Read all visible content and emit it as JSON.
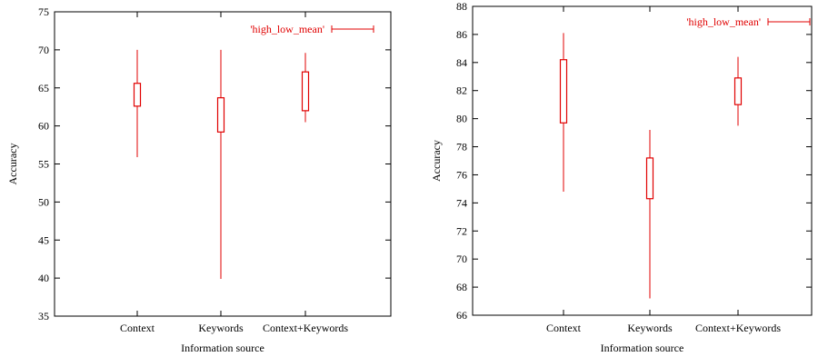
{
  "chart_data": [
    {
      "type": "candlestick",
      "xlabel": "Information source",
      "ylabel": "Accuracy",
      "ylim": [
        35,
        75
      ],
      "yticks": [
        35,
        40,
        45,
        50,
        55,
        60,
        65,
        70,
        75
      ],
      "categories": [
        "Context",
        "Keywords",
        "Context+Keywords"
      ],
      "legend": {
        "label": "'high_low_mean'",
        "position": "top-right"
      },
      "series_color": "#e00000",
      "boxes": [
        {
          "category": "Context",
          "low": 55.9,
          "high": 70.0,
          "box_low": 62.6,
          "box_high": 65.6
        },
        {
          "category": "Keywords",
          "low": 39.9,
          "high": 70.0,
          "box_low": 59.2,
          "box_high": 63.7
        },
        {
          "category": "Context+Keywords",
          "low": 60.5,
          "high": 69.6,
          "box_low": 62.0,
          "box_high": 67.1
        }
      ]
    },
    {
      "type": "candlestick",
      "xlabel": "Information source",
      "ylabel": "Accuracy",
      "ylim": [
        66,
        88
      ],
      "yticks": [
        66,
        68,
        70,
        72,
        74,
        76,
        78,
        80,
        82,
        84,
        86,
        88
      ],
      "categories": [
        "Context",
        "Keywords",
        "Context+Keywords"
      ],
      "legend": {
        "label": "'high_low_mean'",
        "position": "top-right"
      },
      "series_color": "#e00000",
      "boxes": [
        {
          "category": "Context",
          "low": 74.8,
          "high": 86.1,
          "box_low": 79.7,
          "box_high": 84.2
        },
        {
          "category": "Keywords",
          "low": 67.2,
          "high": 79.2,
          "box_low": 74.3,
          "box_high": 77.2
        },
        {
          "category": "Context+Keywords",
          "low": 79.5,
          "high": 84.4,
          "box_low": 81.0,
          "box_high": 82.9
        }
      ]
    }
  ]
}
